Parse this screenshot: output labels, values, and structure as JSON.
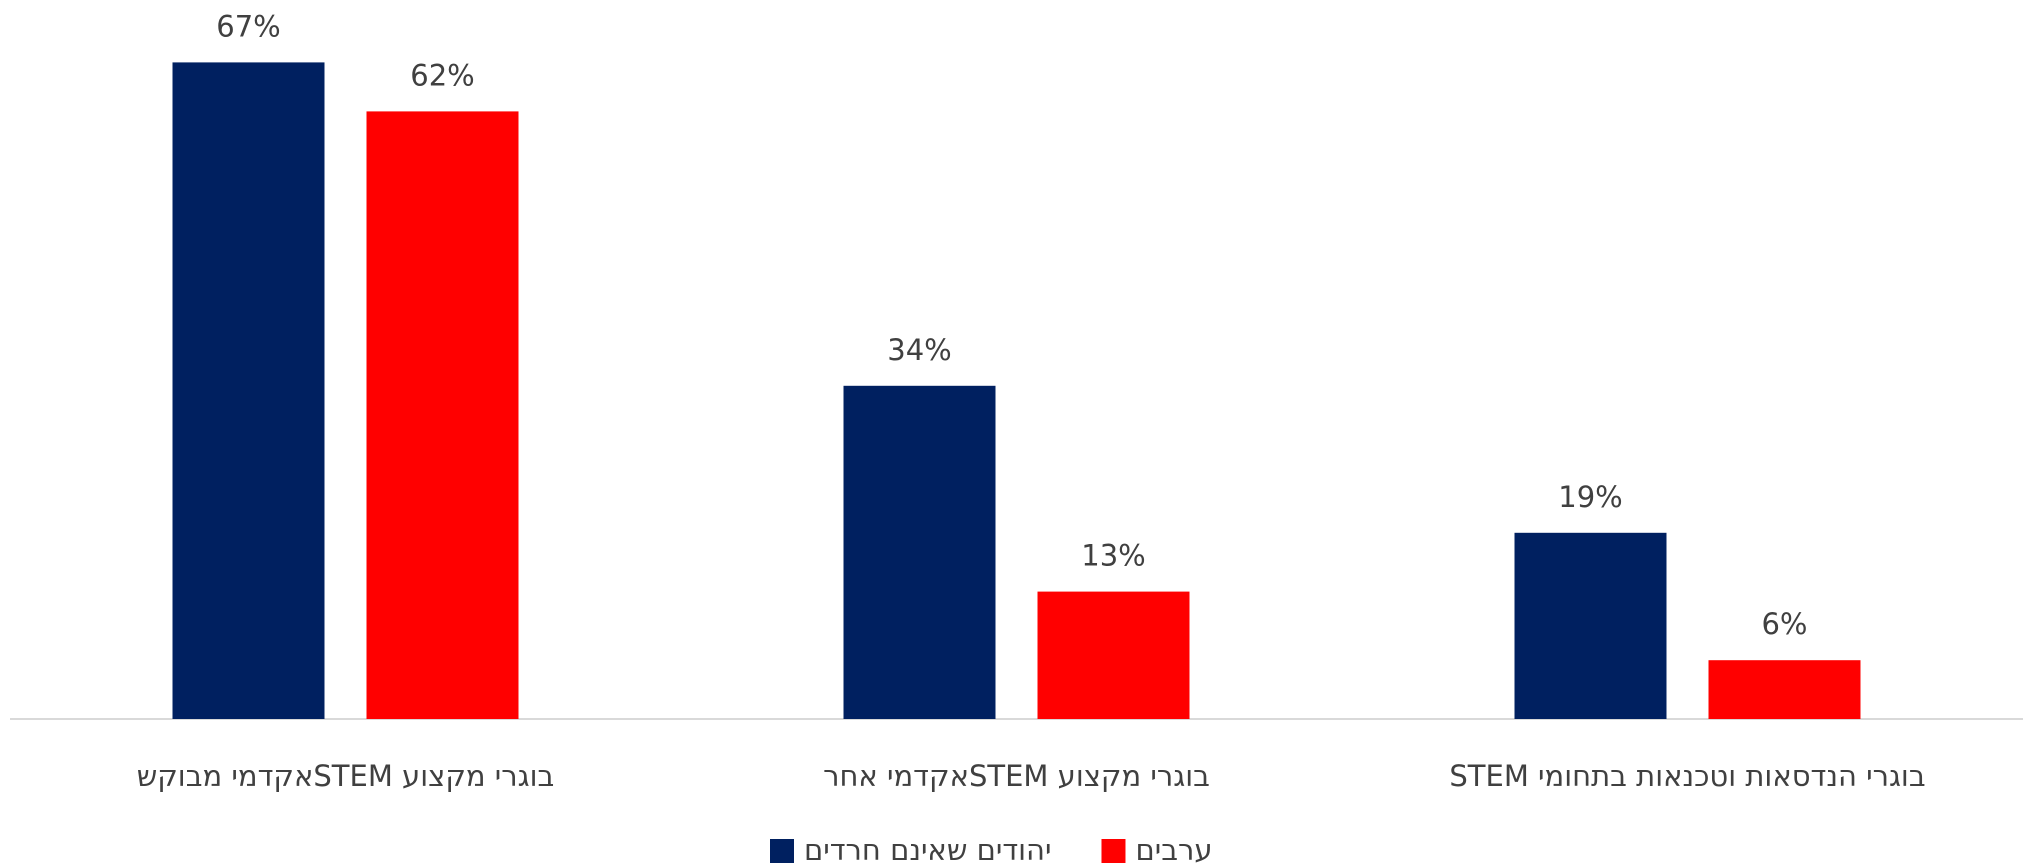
{
  "chart_data": {
    "type": "bar",
    "categories": [
      "בוגרי מקצוע  STEMאקדמי מבוקש",
      "בוגרי מקצוע  STEMאקדמי אחר",
      "בוגרי הנדסאות וטכנאות בתחומי STEM"
    ],
    "series": [
      {
        "name": "יהודים שאינם חרדים",
        "color": "#002060",
        "values": [
          67,
          34,
          19
        ],
        "value_labels": [
          "67%",
          "34%",
          "19%"
        ]
      },
      {
        "name": "ערבים",
        "color": "#ff0000",
        "values": [
          62,
          13,
          6
        ],
        "value_labels": [
          "62%",
          "13%",
          "6%"
        ]
      }
    ],
    "ylim": [
      0,
      70
    ],
    "grid": false,
    "legend": "bottom"
  }
}
